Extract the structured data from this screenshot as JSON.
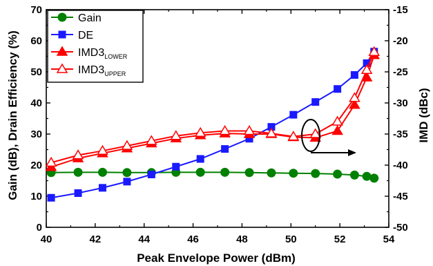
{
  "chart_data": {
    "type": "line",
    "xlabel": "Peak Envelope Power (dBm)",
    "ylabel": "Gain (dB), Drain Efficiency (%)",
    "y2label": "IMD (dBc)",
    "xlim": [
      40,
      54
    ],
    "ylim": [
      0,
      70
    ],
    "y2lim": [
      -50,
      -15
    ],
    "xticks": [
      "40",
      "42",
      "44",
      "46",
      "48",
      "50",
      "52",
      "54"
    ],
    "yticks": [
      "0",
      "10",
      "20",
      "30",
      "40",
      "50",
      "60",
      "70"
    ],
    "y2ticks": [
      "-50",
      "-45",
      "-40",
      "-35",
      "-30",
      "-25",
      "-20",
      "-15"
    ],
    "legend_position": "top-left",
    "series": [
      {
        "name": "Gain",
        "axis": "left",
        "color": "#008000",
        "marker": "circle",
        "x": [
          40.2,
          41.3,
          42.3,
          43.3,
          44.3,
          45.3,
          46.3,
          47.3,
          48.3,
          49.2,
          50.1,
          51.0,
          51.9,
          52.6,
          53.1,
          53.4
        ],
        "values": [
          17.6,
          17.7,
          17.7,
          17.6,
          17.6,
          17.7,
          17.7,
          17.7,
          17.6,
          17.5,
          17.4,
          17.3,
          17.1,
          16.8,
          16.4,
          15.8
        ]
      },
      {
        "name": "DE",
        "axis": "left",
        "color": "#1a1aff",
        "marker": "square",
        "x": [
          40.2,
          41.3,
          42.3,
          43.3,
          44.3,
          45.3,
          46.3,
          47.3,
          48.3,
          49.2,
          50.1,
          51.0,
          51.9,
          52.6,
          53.1,
          53.4
        ],
        "values": [
          9.5,
          11.0,
          12.7,
          14.7,
          17.0,
          19.5,
          22.0,
          25.2,
          28.5,
          32.3,
          36.2,
          40.3,
          44.5,
          49.0,
          52.8,
          56.5
        ]
      },
      {
        "name": "IMD3",
        "subscript": "LOWER",
        "axis": "right",
        "color": "#ff0000",
        "marker": "triangle-filled",
        "x": [
          40.2,
          41.3,
          42.3,
          43.3,
          44.3,
          45.3,
          46.3,
          47.3,
          48.3,
          49.2,
          50.1,
          51.0,
          51.9,
          52.6,
          53.1,
          53.4
        ],
        "values": [
          -40.3,
          -38.9,
          -38.1,
          -37.3,
          -36.5,
          -35.7,
          -35.2,
          -34.9,
          -35.0,
          -35.0,
          -35.5,
          -35.6,
          -34.5,
          -30.3,
          -25.9,
          -22.3
        ]
      },
      {
        "name": "IMD3",
        "subscript": "UPPER",
        "axis": "right",
        "color": "#ff0000",
        "marker": "triangle-open",
        "x": [
          40.2,
          41.3,
          42.3,
          43.3,
          44.3,
          45.3,
          46.3,
          47.3,
          48.3,
          49.2,
          50.1,
          51.0,
          51.9,
          52.6,
          53.1,
          53.4
        ],
        "values": [
          -39.6,
          -38.4,
          -37.7,
          -36.9,
          -36.1,
          -35.3,
          -34.8,
          -34.5,
          -34.5,
          -34.9,
          -35.4,
          -35.0,
          -33.0,
          -29.2,
          -24.7,
          -21.8
        ]
      }
    ]
  }
}
